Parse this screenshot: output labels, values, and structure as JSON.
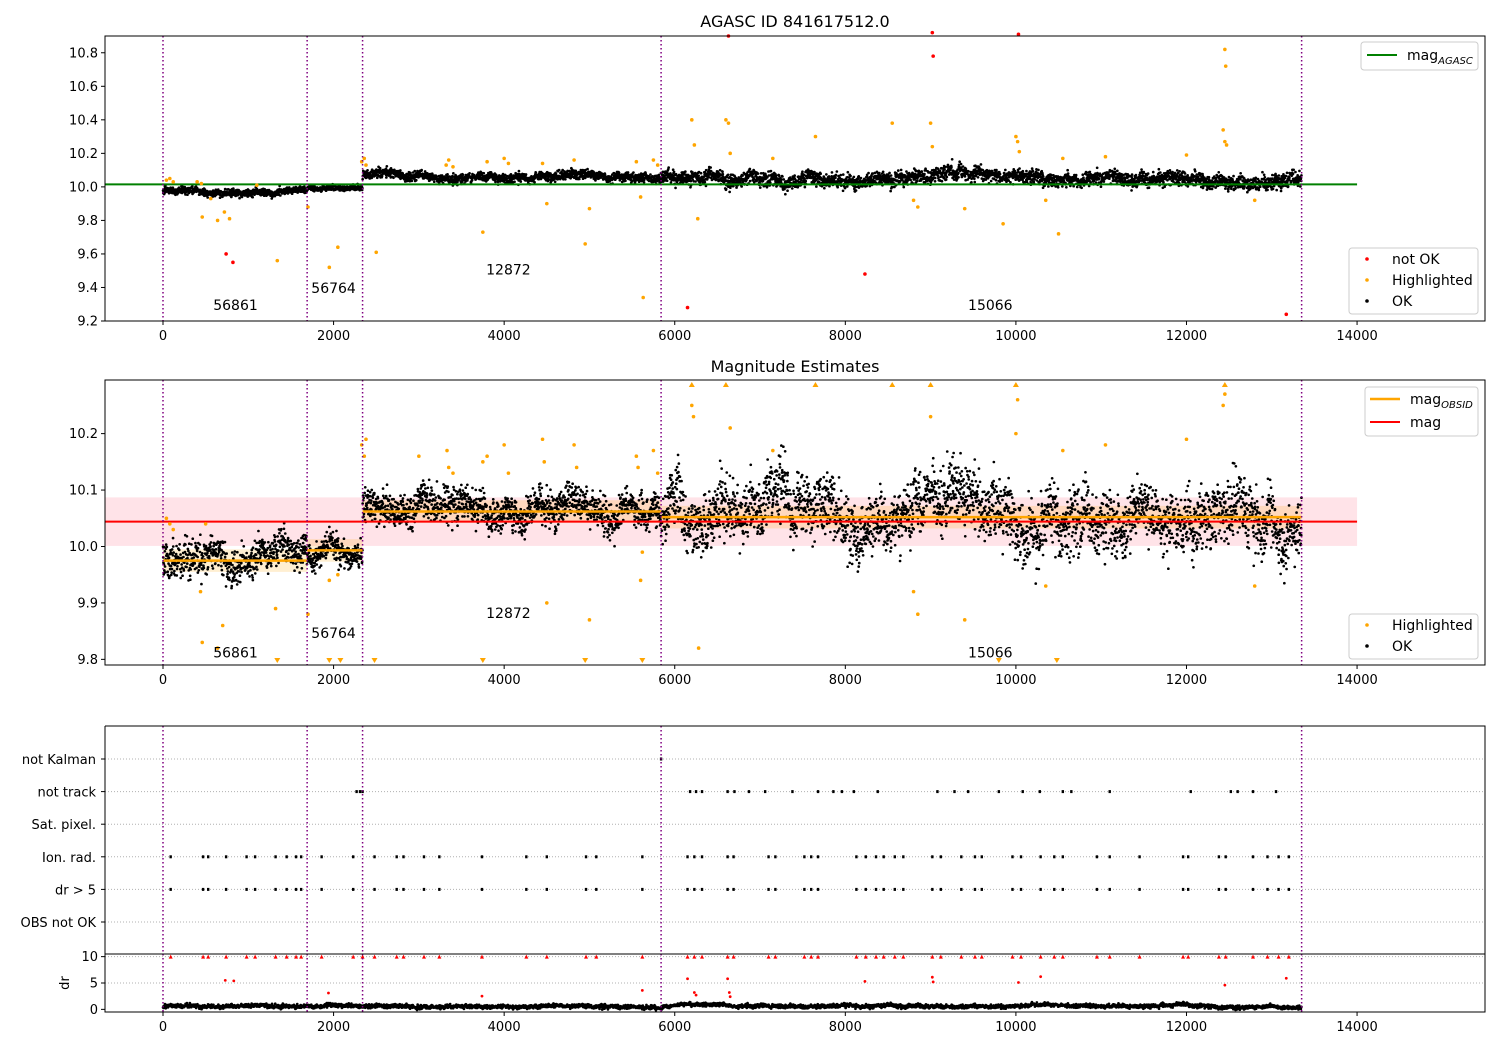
{
  "figure": {
    "title": "AGASC ID 841617512.0",
    "obs_boundaries": [
      0,
      1690,
      2340,
      5840,
      13350
    ],
    "colors": {
      "ok": "#000000",
      "highlighted": "#ffa500",
      "not_ok": "#ff0000",
      "mag_agasc": "#008000",
      "mag_obsid": "#ffa500",
      "mag": "#ff0000",
      "boundary": "#800080",
      "band": "#ffc0cb"
    }
  },
  "chart_data": [
    {
      "type": "scatter",
      "title": "AGASC ID 841617512.0",
      "xlim": [
        -680,
        15500
      ],
      "ylim": [
        9.2,
        10.9
      ],
      "xticks": [
        0,
        2000,
        4000,
        6000,
        8000,
        10000,
        12000,
        14000
      ],
      "yticks": [
        9.2,
        9.4,
        9.6,
        9.8,
        10.0,
        10.2,
        10.4,
        10.6,
        10.8
      ],
      "ytick_labels": [
        "9.2",
        "9.4",
        "9.6",
        "9.8",
        "10.0",
        "10.2",
        "10.4",
        "10.6",
        "10.8"
      ],
      "mag_agasc": 10.015,
      "mag_agasc_x_end": 14000,
      "legend_top": "mag",
      "legend_top_sub": "AGASC",
      "legend_bottom": [
        "not OK",
        "Highlighted",
        "OK"
      ],
      "obs_labels": [
        {
          "text": "56861",
          "x": 850,
          "y": 9.29
        },
        {
          "text": "56764",
          "x": 2000,
          "y": 9.39
        },
        {
          "text": "12872",
          "x": 4050,
          "y": 9.5
        },
        {
          "text": "15066",
          "x": 9700,
          "y": 9.29
        }
      ],
      "segments": [
        {
          "x0": 0,
          "x1": 1690,
          "level": 9.98,
          "spread": 0.018
        },
        {
          "x0": 1690,
          "x1": 2340,
          "level": 9.995,
          "spread": 0.014
        },
        {
          "x0": 2340,
          "x1": 5840,
          "level": 10.06,
          "spread": 0.022
        },
        {
          "x0": 5840,
          "x1": 13350,
          "level": 10.05,
          "spread": 0.035
        }
      ],
      "highlighted_points": [
        [
          40,
          10.04
        ],
        [
          80,
          10.05
        ],
        [
          120,
          10.03
        ],
        [
          400,
          10.03
        ],
        [
          450,
          10.02
        ],
        [
          460,
          9.82
        ],
        [
          560,
          9.93
        ],
        [
          640,
          9.8
        ],
        [
          720,
          9.85
        ],
        [
          780,
          9.81
        ],
        [
          1100,
          10.01
        ],
        [
          1340,
          9.56
        ],
        [
          1700,
          9.88
        ],
        [
          1950,
          9.52
        ],
        [
          2050,
          9.64
        ],
        [
          2330,
          10.15
        ],
        [
          2360,
          10.17
        ],
        [
          2380,
          10.13
        ],
        [
          2500,
          9.61
        ],
        [
          3320,
          10.13
        ],
        [
          3350,
          10.16
        ],
        [
          3400,
          10.12
        ],
        [
          3750,
          9.73
        ],
        [
          3800,
          10.15
        ],
        [
          4000,
          10.17
        ],
        [
          4050,
          10.14
        ],
        [
          4450,
          10.14
        ],
        [
          4500,
          9.9
        ],
        [
          4820,
          10.16
        ],
        [
          4950,
          9.66
        ],
        [
          5000,
          9.87
        ],
        [
          5550,
          10.15
        ],
        [
          5600,
          9.94
        ],
        [
          5630,
          9.34
        ],
        [
          5750,
          10.16
        ],
        [
          5800,
          10.13
        ],
        [
          6200,
          10.4
        ],
        [
          6230,
          10.25
        ],
        [
          6270,
          9.81
        ],
        [
          6600,
          10.4
        ],
        [
          6630,
          10.38
        ],
        [
          6650,
          10.2
        ],
        [
          7150,
          10.17
        ],
        [
          7650,
          10.3
        ],
        [
          8550,
          10.38
        ],
        [
          8800,
          9.92
        ],
        [
          8850,
          9.88
        ],
        [
          9000,
          10.38
        ],
        [
          9020,
          10.24
        ],
        [
          9400,
          9.87
        ],
        [
          9850,
          9.78
        ],
        [
          10000,
          10.3
        ],
        [
          10020,
          10.27
        ],
        [
          10040,
          10.21
        ],
        [
          10350,
          9.92
        ],
        [
          10500,
          9.72
        ],
        [
          10550,
          10.17
        ],
        [
          11050,
          10.18
        ],
        [
          12000,
          10.19
        ],
        [
          12430,
          10.34
        ],
        [
          12450,
          10.27
        ],
        [
          12470,
          10.25
        ],
        [
          12450,
          10.82
        ],
        [
          12460,
          10.72
        ],
        [
          12800,
          9.92
        ]
      ],
      "not_ok_points": [
        [
          740,
          9.6
        ],
        [
          820,
          9.55
        ],
        [
          6150,
          9.28
        ],
        [
          6630,
          10.9
        ],
        [
          8230,
          9.48
        ],
        [
          9020,
          10.92
        ],
        [
          9030,
          10.78
        ],
        [
          10030,
          10.91
        ],
        [
          13170,
          9.24
        ]
      ]
    },
    {
      "type": "scatter",
      "title": "Magnitude Estimates",
      "xlim": [
        -680,
        15500
      ],
      "ylim": [
        9.79,
        10.295
      ],
      "xticks": [
        0,
        2000,
        4000,
        6000,
        8000,
        10000,
        12000,
        14000
      ],
      "yticks": [
        9.8,
        9.9,
        10.0,
        10.1,
        10.2
      ],
      "ytick_labels": [
        "9.8",
        "9.9",
        "10.0",
        "10.1",
        "10.2"
      ],
      "mag": 10.044,
      "mag_band": [
        10.001,
        10.087
      ],
      "mag_x_end": 14000,
      "mag_obsid": [
        {
          "x0": 0,
          "x1": 1690,
          "value": 9.975
        },
        {
          "x0": 1690,
          "x1": 2340,
          "value": 9.993
        },
        {
          "x0": 2340,
          "x1": 5840,
          "value": 10.062
        },
        {
          "x0": 5840,
          "x1": 13350,
          "value": 10.052
        }
      ],
      "legend_top": [
        "mag",
        "mag"
      ],
      "legend_top_sub": "OBSID",
      "legend_bottom": [
        "Highlighted",
        "OK"
      ],
      "obs_labels": [
        {
          "text": "56861",
          "x": 850,
          "y": 9.81
        },
        {
          "text": "56764",
          "x": 2000,
          "y": 9.845
        },
        {
          "text": "12872",
          "x": 4050,
          "y": 9.88
        },
        {
          "text": "15066",
          "x": 9700,
          "y": 9.81
        }
      ],
      "segments": [
        {
          "x0": 0,
          "x1": 1690,
          "level": 9.975,
          "spread": 0.025
        },
        {
          "x0": 1690,
          "x1": 2340,
          "level": 9.993,
          "spread": 0.02
        },
        {
          "x0": 2340,
          "x1": 5840,
          "level": 10.062,
          "spread": 0.025
        },
        {
          "x0": 5840,
          "x1": 13350,
          "level": 10.052,
          "spread": 0.045
        }
      ],
      "highlighted_points": [
        [
          40,
          10.05
        ],
        [
          80,
          10.04
        ],
        [
          120,
          10.03
        ],
        [
          440,
          9.92
        ],
        [
          460,
          9.83
        ],
        [
          500,
          10.04
        ],
        [
          640,
          9.82
        ],
        [
          700,
          9.86
        ],
        [
          1320,
          9.89
        ],
        [
          1700,
          9.88
        ],
        [
          1950,
          9.94
        ],
        [
          2050,
          9.95
        ],
        [
          2330,
          10.18
        ],
        [
          2360,
          10.16
        ],
        [
          2380,
          10.19
        ],
        [
          3000,
          10.16
        ],
        [
          3330,
          10.17
        ],
        [
          3350,
          10.14
        ],
        [
          3400,
          10.13
        ],
        [
          3750,
          10.15
        ],
        [
          3800,
          10.16
        ],
        [
          4000,
          10.18
        ],
        [
          4050,
          10.13
        ],
        [
          4450,
          10.19
        ],
        [
          4470,
          10.15
        ],
        [
          4500,
          9.9
        ],
        [
          4820,
          10.18
        ],
        [
          4850,
          10.14
        ],
        [
          5000,
          9.87
        ],
        [
          5550,
          10.16
        ],
        [
          5570,
          10.14
        ],
        [
          5600,
          9.94
        ],
        [
          5620,
          9.99
        ],
        [
          5750,
          10.17
        ],
        [
          5800,
          10.13
        ],
        [
          6200,
          10.25
        ],
        [
          6220,
          10.23
        ],
        [
          6280,
          9.82
        ],
        [
          6650,
          10.21
        ],
        [
          7150,
          10.17
        ],
        [
          8800,
          9.92
        ],
        [
          8850,
          9.88
        ],
        [
          9000,
          10.23
        ],
        [
          9400,
          9.87
        ],
        [
          10000,
          10.2
        ],
        [
          10020,
          10.26
        ],
        [
          10350,
          9.93
        ],
        [
          10550,
          10.17
        ],
        [
          11050,
          10.18
        ],
        [
          12000,
          10.19
        ],
        [
          12430,
          10.25
        ],
        [
          12450,
          10.27
        ],
        [
          12800,
          9.93
        ]
      ],
      "clipped_high": [
        6200,
        6600,
        7650,
        8550,
        9000,
        10000,
        12450
      ],
      "clipped_low": [
        1340,
        1950,
        2080,
        2480,
        3750,
        4950,
        5620,
        9800,
        10480
      ]
    },
    {
      "type": "scatter",
      "xlim": [
        -680,
        15500
      ],
      "categories": [
        "not Kalman",
        "not track",
        "Sat. pixel.",
        "Ion. rad.",
        "dr > 5",
        "OBS not OK"
      ],
      "xticks": [
        0,
        2000,
        4000,
        6000,
        8000,
        10000,
        12000,
        14000
      ],
      "flag_events": {
        "not Kalman": [
          5840
        ],
        "not track": [
          2270,
          2310,
          2340,
          6180,
          6250,
          6320,
          6620,
          6700,
          6870,
          7060,
          7380,
          7680,
          7860,
          7960,
          8100,
          8380,
          9080,
          9280,
          9440,
          9800,
          10080,
          10280,
          10550,
          10650,
          11100,
          12050,
          12520,
          12600,
          12780,
          13050
        ],
        "Sat. pixel.": [],
        "Ion. rad.": [
          90,
          470,
          530,
          740,
          980,
          1080,
          1320,
          1450,
          1560,
          1620,
          1860,
          2230,
          2480,
          2740,
          2820,
          3060,
          3240,
          3740,
          4260,
          4500,
          4960,
          5080,
          5620,
          6150,
          6230,
          6320,
          6620,
          6690,
          7100,
          7180,
          7520,
          7600,
          7680,
          8130,
          8240,
          8360,
          8450,
          8580,
          8680,
          9020,
          9120,
          9360,
          9520,
          9600,
          9960,
          10060,
          10290,
          10450,
          10550,
          10950,
          11100,
          11450,
          11960,
          12020,
          12380,
          12460,
          12780,
          12950,
          13080,
          13200
        ],
        "dr > 5": [
          90,
          470,
          530,
          740,
          980,
          1080,
          1320,
          1450,
          1560,
          1620,
          1860,
          2230,
          2480,
          2740,
          2820,
          3060,
          3240,
          3740,
          4260,
          4500,
          4960,
          5080,
          5620,
          6150,
          6230,
          6320,
          6620,
          6690,
          7100,
          7180,
          7520,
          7600,
          7680,
          8130,
          8240,
          8360,
          8450,
          8580,
          8680,
          9020,
          9120,
          9360,
          9520,
          9600,
          9960,
          10060,
          10290,
          10450,
          10550,
          10950,
          11100,
          11450,
          11960,
          12020,
          12380,
          12460,
          12780,
          12950,
          13080,
          13200
        ],
        "OBS not OK": []
      }
    },
    {
      "type": "scatter",
      "ylabel": "dr",
      "xlim": [
        -680,
        15500
      ],
      "ylim": [
        -0.5,
        10.5
      ],
      "xticks": [
        0,
        2000,
        4000,
        6000,
        8000,
        10000,
        12000,
        14000
      ],
      "yticks": [
        0,
        5,
        10
      ],
      "ytick_labels": [
        "0",
        "5",
        "10"
      ],
      "clipped_dr_x": [
        90,
        470,
        530,
        740,
        980,
        1080,
        1320,
        1450,
        1560,
        1620,
        1860,
        2230,
        2340,
        2480,
        2740,
        2820,
        3060,
        3240,
        3740,
        4260,
        4500,
        4960,
        5080,
        5620,
        6150,
        6230,
        6320,
        6620,
        6690,
        7100,
        7180,
        7520,
        7600,
        7680,
        8130,
        8240,
        8360,
        8450,
        8580,
        8680,
        9020,
        9120,
        9360,
        9520,
        9600,
        9960,
        10060,
        10290,
        10450,
        10550,
        10950,
        11100,
        11450,
        11960,
        12020,
        12380,
        12460,
        12780,
        12950,
        13080,
        13200
      ],
      "dr_mid_points": [
        [
          730,
          5.5
        ],
        [
          830,
          5.4
        ],
        [
          1940,
          3.1
        ],
        [
          3740,
          2.5
        ],
        [
          5620,
          3.6
        ],
        [
          6150,
          5.8
        ],
        [
          6230,
          3.2
        ],
        [
          6250,
          2.7
        ],
        [
          6620,
          5.8
        ],
        [
          6640,
          3.2
        ],
        [
          6650,
          2.4
        ],
        [
          8230,
          5.3
        ],
        [
          9020,
          6.1
        ],
        [
          9030,
          5.2
        ],
        [
          10030,
          5.1
        ],
        [
          10290,
          6.2
        ],
        [
          12450,
          4.6
        ],
        [
          13170,
          5.9
        ]
      ]
    }
  ]
}
